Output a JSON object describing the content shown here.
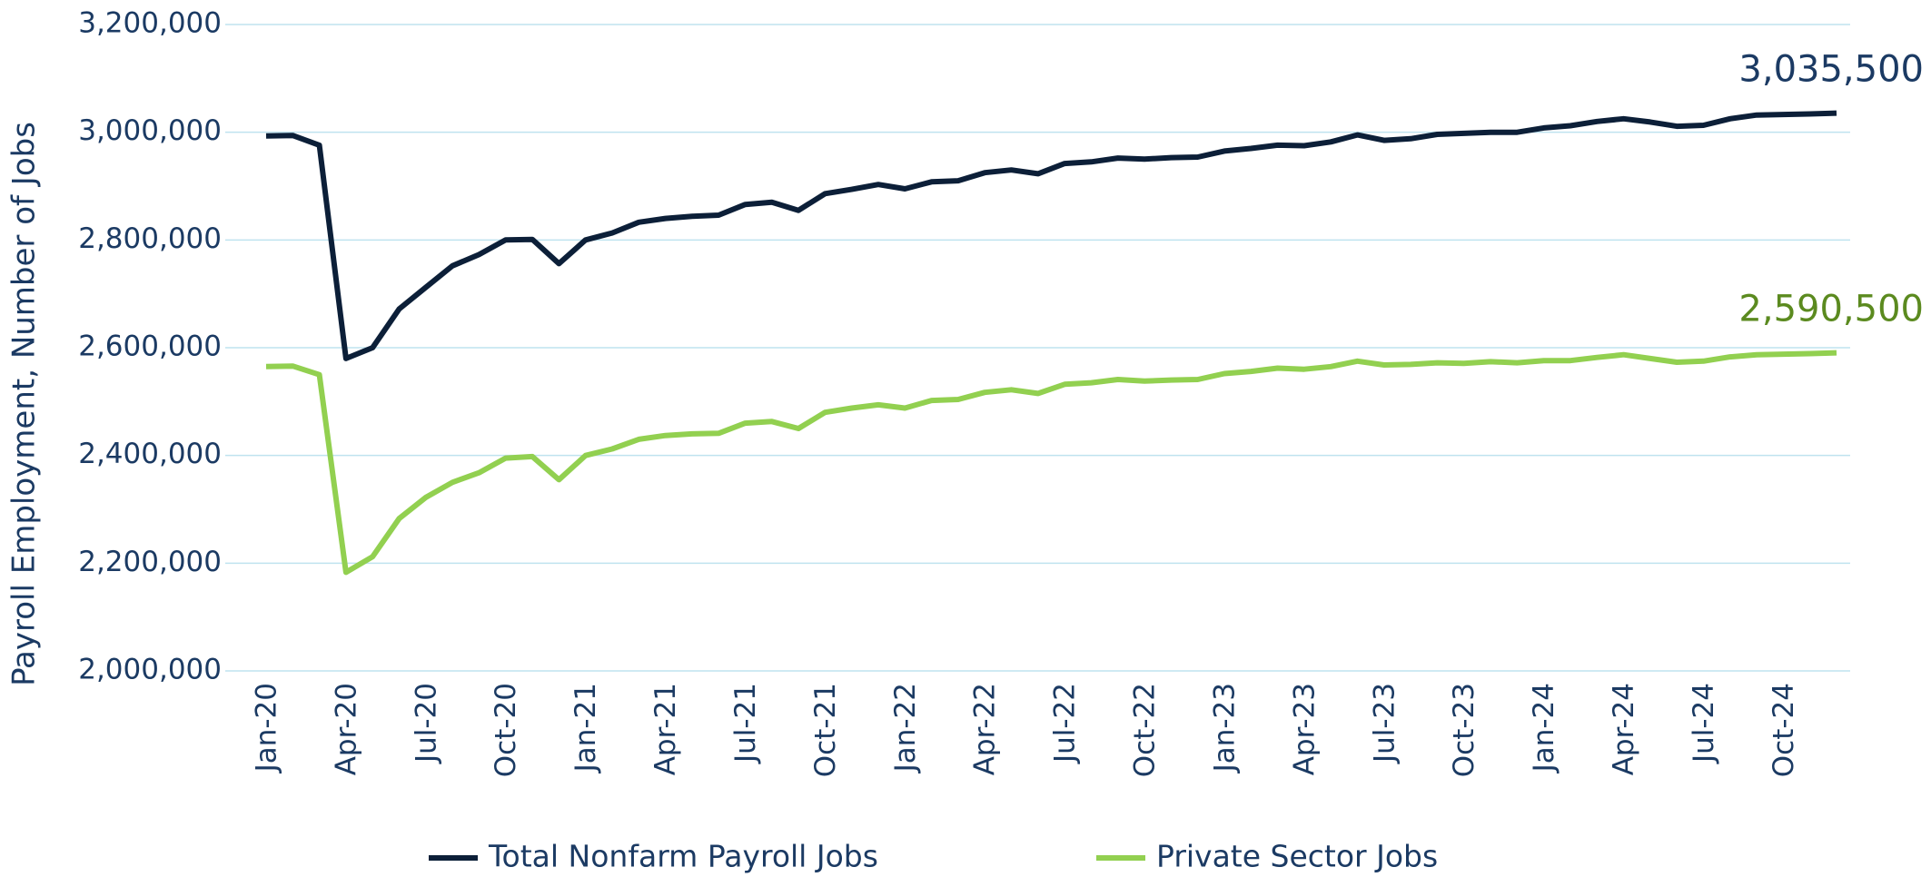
{
  "chart_data": {
    "type": "line",
    "y_label": "Payroll Employment, Number of Jobs",
    "categories": [
      "Jan-20",
      null,
      null,
      "Apr-20",
      null,
      null,
      "Jul-20",
      null,
      null,
      "Oct-20",
      null,
      null,
      "Jan-21",
      null,
      null,
      "Apr-21",
      null,
      null,
      "Jul-21",
      null,
      null,
      "Oct-21",
      null,
      null,
      "Jan-22",
      null,
      null,
      "Apr-22",
      null,
      null,
      "Jul-22",
      null,
      null,
      "Oct-22",
      null,
      null,
      "Jan-23",
      null,
      null,
      "Apr-23",
      null,
      null,
      "Jul-23",
      null,
      null,
      "Oct-23",
      null,
      null,
      "Jan-24",
      null,
      null,
      "Apr-24",
      null,
      null,
      "Jul-24",
      null,
      null,
      "Oct-24",
      null,
      null
    ],
    "series": [
      {
        "name": "Total Nonfarm Payroll Jobs",
        "color": "#0c1f38",
        "label_color": "#1b3a63",
        "values": [
          2993000,
          2994000,
          2976000,
          2580000,
          2600000,
          2672000,
          2712000,
          2752000,
          2773000,
          2800000,
          2801000,
          2756000,
          2800000,
          2813000,
          2833000,
          2840000,
          2844000,
          2846000,
          2866000,
          2870000,
          2855000,
          2886000,
          2894000,
          2903000,
          2895000,
          2908000,
          2910000,
          2925000,
          2930000,
          2923000,
          2942000,
          2945000,
          2952000,
          2950000,
          2953000,
          2954000,
          2965000,
          2970000,
          2976000,
          2975000,
          2982000,
          2995000,
          2985000,
          2988000,
          2996000,
          2998000,
          3000000,
          3000000,
          3008000,
          3012000,
          3020000,
          3025000,
          3019000,
          3011000,
          3013000,
          3025000,
          3032000,
          3033000,
          3034000,
          3035500
        ],
        "value_labels": [
          null,
          null,
          null,
          null,
          null,
          null,
          null,
          null,
          null,
          null,
          null,
          null,
          null,
          null,
          null,
          null,
          null,
          null,
          null,
          null,
          null,
          null,
          null,
          null,
          null,
          null,
          null,
          null,
          null,
          null,
          null,
          null,
          null,
          null,
          null,
          null,
          null,
          null,
          null,
          null,
          null,
          null,
          null,
          null,
          null,
          null,
          null,
          null,
          null,
          null,
          null,
          null,
          null,
          null,
          null,
          null,
          null,
          null,
          null,
          "3,035,500"
        ]
      },
      {
        "name": "Private Sector Jobs",
        "color": "#92d050",
        "label_color": "#5b8a1f",
        "values": [
          2565000,
          2566000,
          2550000,
          2183000,
          2212000,
          2283000,
          2322000,
          2350000,
          2368000,
          2395000,
          2398000,
          2355000,
          2400000,
          2412000,
          2430000,
          2437000,
          2440000,
          2441000,
          2460000,
          2463000,
          2450000,
          2480000,
          2488000,
          2494000,
          2488000,
          2502000,
          2504000,
          2517000,
          2522000,
          2515000,
          2532000,
          2535000,
          2541000,
          2538000,
          2540000,
          2541000,
          2552000,
          2556000,
          2562000,
          2560000,
          2565000,
          2575000,
          2568000,
          2569000,
          2572000,
          2571000,
          2574000,
          2572000,
          2576000,
          2576000,
          2582000,
          2587000,
          2580000,
          2573000,
          2575000,
          2583000,
          2587000,
          2588000,
          2589000,
          2590500
        ],
        "value_labels": [
          null,
          null,
          null,
          null,
          null,
          null,
          null,
          null,
          null,
          null,
          null,
          null,
          null,
          null,
          null,
          null,
          null,
          null,
          null,
          null,
          null,
          null,
          null,
          null,
          null,
          null,
          null,
          null,
          null,
          null,
          null,
          null,
          null,
          null,
          null,
          null,
          null,
          null,
          null,
          null,
          null,
          null,
          null,
          null,
          null,
          null,
          null,
          null,
          null,
          null,
          null,
          null,
          null,
          null,
          null,
          null,
          null,
          null,
          null,
          "2,590,500"
        ]
      }
    ],
    "ylim": [
      2000000,
      3200000
    ],
    "yticks": [
      {
        "value": 2000000,
        "label": "2,000,000"
      },
      {
        "value": 2200000,
        "label": "2,200,000"
      },
      {
        "value": 2400000,
        "label": "2,400,000"
      },
      {
        "value": 2600000,
        "label": "2,600,000"
      },
      {
        "value": 2800000,
        "label": "2,800,000"
      },
      {
        "value": 3000000,
        "label": "3,000,000"
      },
      {
        "value": 3200000,
        "label": "3,200,000"
      }
    ],
    "grid": true,
    "legend": "bottom"
  }
}
